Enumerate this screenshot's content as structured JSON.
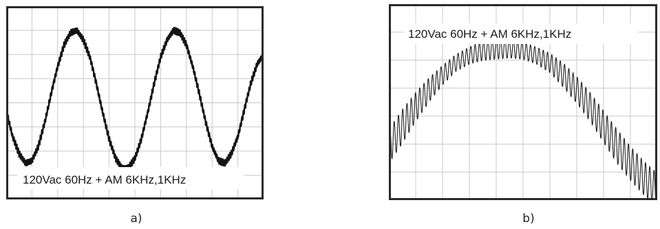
{
  "figure": {
    "panels": [
      {
        "caption": "a)",
        "annotation": "120Vac 60Hz + AM 6KHz,1KHz",
        "grid_color": "#c8c8c8",
        "trace_color": "#141414",
        "frame_color": "#2a2a2a"
      },
      {
        "caption": "b)",
        "annotation": "120Vac 60Hz + AM 6KHz,1KHz",
        "grid_color": "#c8c8c8",
        "trace_color": "#202020",
        "frame_color": "#2a2a2a"
      }
    ]
  },
  "chart_data": [
    {
      "type": "line",
      "title": "120Vac 60Hz + AM 6KHz,1KHz",
      "xlabel": "",
      "ylabel": "",
      "grid": true,
      "xlim": [
        0,
        10
      ],
      "ylim": [
        0,
        8
      ],
      "series": [
        {
          "x": [
            0,
            0.25,
            0.5,
            0.75,
            1.0,
            1.25,
            1.5,
            1.75,
            2.0,
            2.25,
            2.5,
            2.75,
            3.0,
            3.25,
            3.5,
            3.75,
            4.0,
            4.25,
            4.5,
            4.75,
            5.0,
            5.25,
            5.5,
            5.75,
            6.0,
            6.25,
            6.5,
            6.75,
            7.0,
            7.25,
            7.5,
            7.75,
            8.0,
            8.25,
            8.5,
            8.75,
            9.0,
            9.25,
            9.5,
            9.75,
            10.0
          ],
          "y": [
            3.7,
            2.6,
            1.9,
            1.5,
            1.6,
            2.2,
            3.2,
            4.4,
            5.5,
            6.4,
            6.9,
            7.0,
            6.6,
            5.9,
            4.8,
            3.6,
            2.5,
            1.7,
            1.3,
            1.3,
            1.7,
            2.5,
            3.6,
            4.8,
            5.9,
            6.6,
            7.0,
            6.9,
            6.4,
            5.5,
            4.4,
            3.2,
            2.2,
            1.6,
            1.5,
            1.9,
            2.6,
            3.7,
            4.8,
            5.6,
            6.0
          ]
        }
      ]
    },
    {
      "type": "line",
      "title": "120Vac 60Hz + AM 6KHz,1KHz",
      "xlabel": "",
      "ylabel": "",
      "grid": true,
      "xlim": [
        0,
        10
      ],
      "ylim": [
        0,
        8
      ],
      "series": [
        {
          "x": [
            0,
            0.5,
            1.0,
            1.5,
            2.0,
            2.5,
            3.0,
            3.5,
            4.0,
            4.5,
            5.0,
            5.5,
            6.0,
            6.5,
            7.0,
            7.5,
            8.0,
            8.5,
            9.0,
            9.5,
            10.0
          ],
          "y": [
            2.2,
            3.0,
            3.8,
            4.5,
            5.1,
            5.6,
            5.9,
            6.1,
            6.2,
            6.2,
            6.1,
            5.9,
            5.6,
            5.1,
            4.5,
            3.8,
            3.0,
            2.2,
            1.5,
            0.9,
            0.4
          ],
          "ripple_amplitude": [
            0.7,
            0.7,
            0.6,
            0.5,
            0.4,
            0.35,
            0.35,
            0.4,
            0.45,
            0.4,
            0.35,
            0.35,
            0.4,
            0.5,
            0.55,
            0.6,
            0.65,
            0.7,
            0.7,
            0.7,
            0.7
          ]
        }
      ]
    }
  ]
}
